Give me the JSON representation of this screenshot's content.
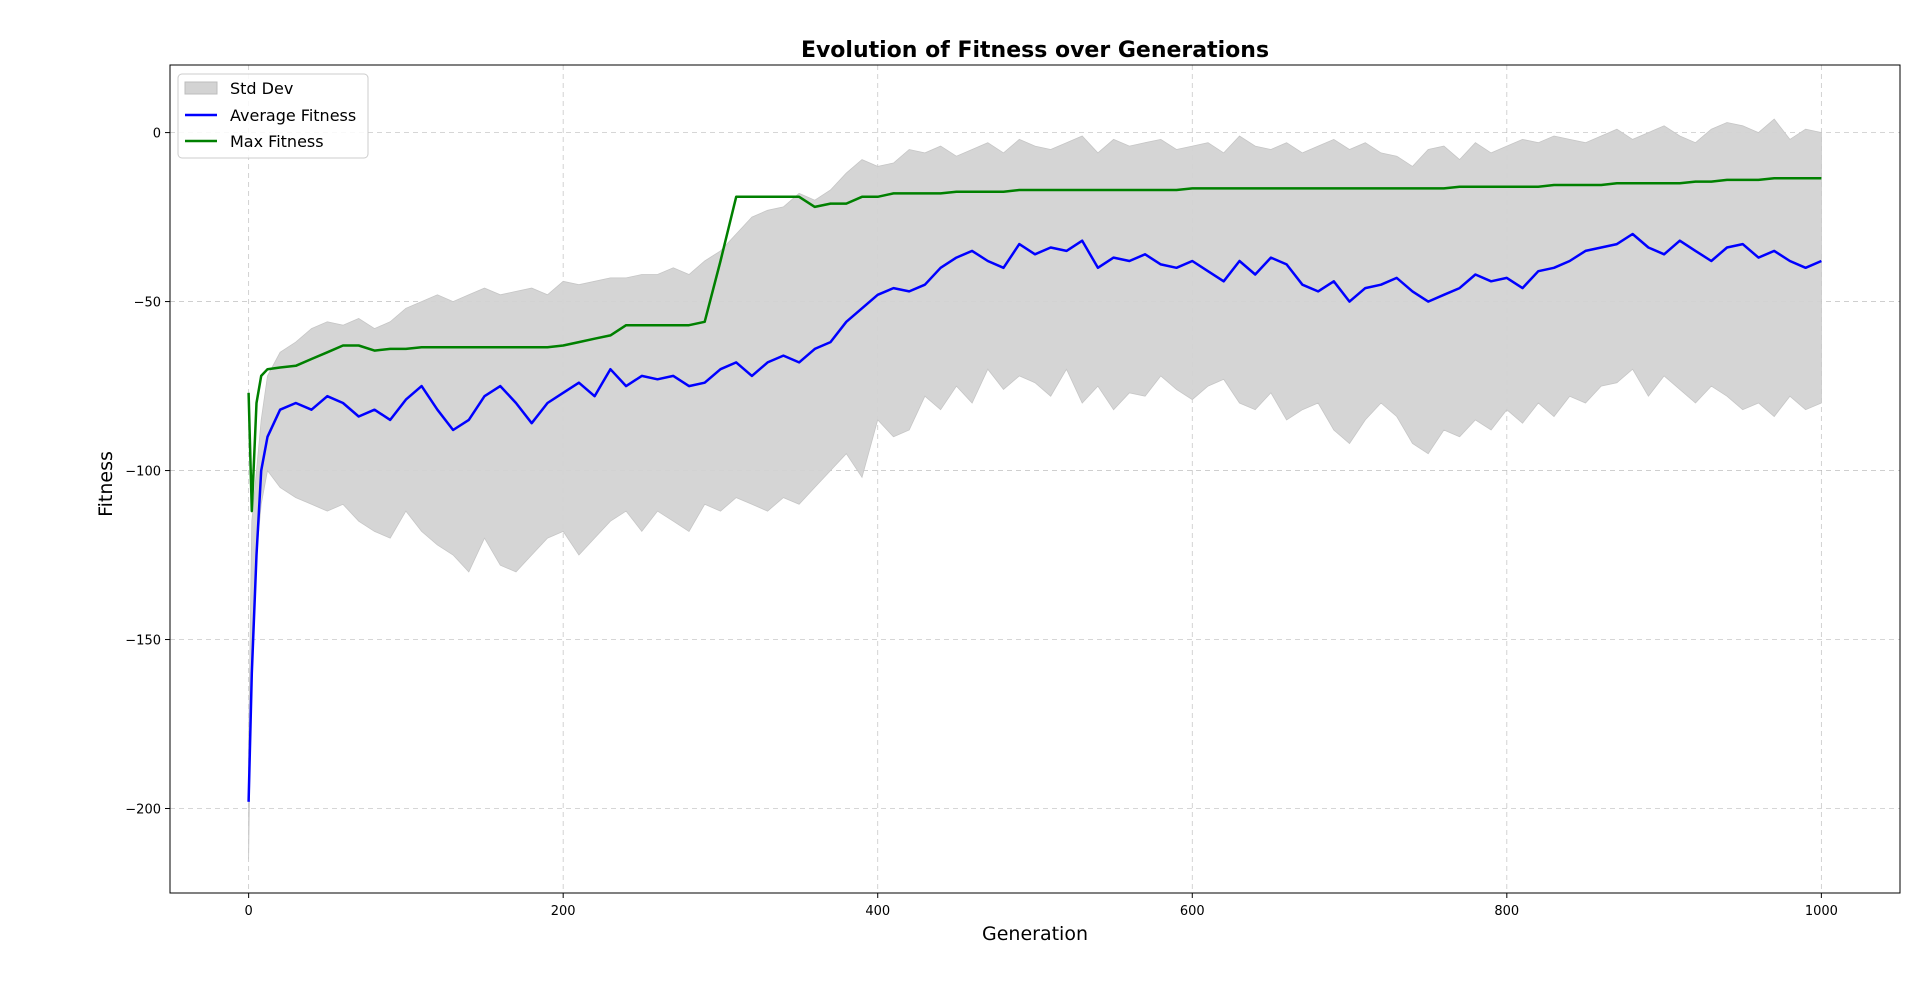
{
  "chart_data": {
    "type": "line",
    "title": "Evolution of Fitness over Generations",
    "xlabel": "Generation",
    "ylabel": "Fitness",
    "xlim": [
      -50,
      1050
    ],
    "ylim": [
      -225,
      20
    ],
    "xticks": [
      0,
      200,
      400,
      600,
      800,
      1000
    ],
    "xtick_labels": [
      "0",
      "200",
      "400",
      "600",
      "800",
      "1000"
    ],
    "yticks": [
      0,
      -50,
      -100,
      -150,
      -200
    ],
    "ytick_labels": [
      "0",
      "−50",
      "−100",
      "−150",
      "−200"
    ],
    "grid": true,
    "legend_position": "top-left",
    "x": [
      0,
      2,
      5,
      8,
      12,
      20,
      30,
      40,
      50,
      60,
      70,
      80,
      90,
      100,
      110,
      120,
      130,
      140,
      150,
      160,
      170,
      180,
      190,
      200,
      210,
      220,
      230,
      240,
      250,
      260,
      270,
      280,
      290,
      300,
      310,
      320,
      330,
      340,
      350,
      360,
      370,
      380,
      390,
      400,
      410,
      420,
      430,
      440,
      450,
      460,
      470,
      480,
      490,
      500,
      510,
      520,
      530,
      540,
      550,
      560,
      570,
      580,
      590,
      600,
      610,
      620,
      630,
      640,
      650,
      660,
      670,
      680,
      690,
      700,
      710,
      720,
      730,
      740,
      750,
      760,
      770,
      780,
      790,
      800,
      810,
      820,
      830,
      840,
      850,
      860,
      870,
      880,
      890,
      900,
      910,
      920,
      930,
      940,
      950,
      960,
      970,
      980,
      990,
      1000
    ],
    "series": [
      {
        "name": "Std Dev",
        "type": "band",
        "color": "#d3d3d3",
        "upper": [
          -180,
          -115,
          -100,
          -85,
          -72,
          -65,
          -62,
          -58,
          -56,
          -57,
          -55,
          -58,
          -56,
          -52,
          -50,
          -48,
          -50,
          -48,
          -46,
          -48,
          -47,
          -46,
          -48,
          -44,
          -45,
          -44,
          -43,
          -43,
          -42,
          -42,
          -40,
          -42,
          -38,
          -35,
          -30,
          -25,
          -23,
          -22,
          -18,
          -20,
          -17,
          -12,
          -8,
          -10,
          -9,
          -5,
          -6,
          -4,
          -7,
          -5,
          -3,
          -6,
          -2,
          -4,
          -5,
          -3,
          -1,
          -6,
          -2,
          -4,
          -3,
          -2,
          -5,
          -4,
          -3,
          -6,
          -1,
          -4,
          -5,
          -3,
          -6,
          -4,
          -2,
          -5,
          -3,
          -6,
          -7,
          -10,
          -5,
          -4,
          -8,
          -3,
          -6,
          -4,
          -2,
          -3,
          -1,
          -2,
          -3,
          -1,
          1,
          -2,
          0,
          2,
          -1,
          -3,
          1,
          3,
          2,
          0,
          4,
          -2,
          1,
          0
        ],
        "lower": [
          -215,
          -150,
          -125,
          -110,
          -100,
          -105,
          -108,
          -110,
          -112,
          -110,
          -115,
          -118,
          -120,
          -112,
          -118,
          -122,
          -125,
          -130,
          -120,
          -128,
          -130,
          -125,
          -120,
          -118,
          -125,
          -120,
          -115,
          -112,
          -118,
          -112,
          -115,
          -118,
          -110,
          -112,
          -108,
          -110,
          -112,
          -108,
          -110,
          -105,
          -100,
          -95,
          -102,
          -85,
          -90,
          -88,
          -78,
          -82,
          -75,
          -80,
          -70,
          -76,
          -72,
          -74,
          -78,
          -70,
          -80,
          -75,
          -82,
          -77,
          -78,
          -72,
          -76,
          -79,
          -75,
          -73,
          -80,
          -82,
          -77,
          -85,
          -82,
          -80,
          -88,
          -92,
          -85,
          -80,
          -84,
          -92,
          -95,
          -88,
          -90,
          -85,
          -88,
          -82,
          -86,
          -80,
          -84,
          -78,
          -80,
          -75,
          -74,
          -70,
          -78,
          -72,
          -76,
          -80,
          -75,
          -78,
          -82,
          -80,
          -84,
          -78,
          -82,
          -80
        ]
      },
      {
        "name": "Average Fitness",
        "type": "line",
        "color": "#0000ff",
        "values": [
          -198,
          -160,
          -125,
          -100,
          -90,
          -82,
          -80,
          -82,
          -78,
          -80,
          -84,
          -82,
          -85,
          -79,
          -75,
          -82,
          -88,
          -85,
          -78,
          -75,
          -80,
          -86,
          -80,
          -77,
          -74,
          -78,
          -70,
          -75,
          -72,
          -73,
          -72,
          -75,
          -74,
          -70,
          -68,
          -72,
          -68,
          -66,
          -68,
          -64,
          -62,
          -56,
          -52,
          -48,
          -46,
          -47,
          -45,
          -40,
          -37,
          -35,
          -38,
          -40,
          -33,
          -36,
          -34,
          -35,
          -32,
          -40,
          -37,
          -38,
          -36,
          -39,
          -40,
          -38,
          -41,
          -44,
          -38,
          -42,
          -37,
          -39,
          -45,
          -47,
          -44,
          -50,
          -46,
          -45,
          -43,
          -47,
          -50,
          -48,
          -46,
          -42,
          -44,
          -43,
          -46,
          -41,
          -40,
          -38,
          -35,
          -34,
          -33,
          -30,
          -34,
          -36,
          -32,
          -35,
          -38,
          -34,
          -33,
          -37,
          -35,
          -38,
          -40,
          -38
        ]
      },
      {
        "name": "Max Fitness",
        "type": "line",
        "color": "#008000",
        "values": [
          -77,
          -112,
          -80,
          -72,
          -70,
          -69.5,
          -69,
          -67,
          -65,
          -63,
          -63,
          -64.5,
          -64,
          -64,
          -63.5,
          -63.5,
          -63.5,
          -63.5,
          -63.5,
          -63.5,
          -63.5,
          -63.5,
          -63.5,
          -63,
          -62,
          -61,
          -60,
          -57,
          -57,
          -57,
          -57,
          -57,
          -56,
          -38,
          -19,
          -19,
          -19,
          -19,
          -19,
          -22,
          -21,
          -21,
          -19,
          -19,
          -18,
          -18,
          -18,
          -18,
          -17.5,
          -17.5,
          -17.5,
          -17.5,
          -17,
          -17,
          -17,
          -17,
          -17,
          -17,
          -17,
          -17,
          -17,
          -17,
          -17,
          -16.5,
          -16.5,
          -16.5,
          -16.5,
          -16.5,
          -16.5,
          -16.5,
          -16.5,
          -16.5,
          -16.5,
          -16.5,
          -16.5,
          -16.5,
          -16.5,
          -16.5,
          -16.5,
          -16.5,
          -16,
          -16,
          -16,
          -16,
          -16,
          -16,
          -15.5,
          -15.5,
          -15.5,
          -15.5,
          -15,
          -15,
          -15,
          -15,
          -15,
          -14.5,
          -14.5,
          -14,
          -14,
          -14,
          -13.5,
          -13.5,
          -13.5,
          -13.5
        ]
      }
    ]
  }
}
